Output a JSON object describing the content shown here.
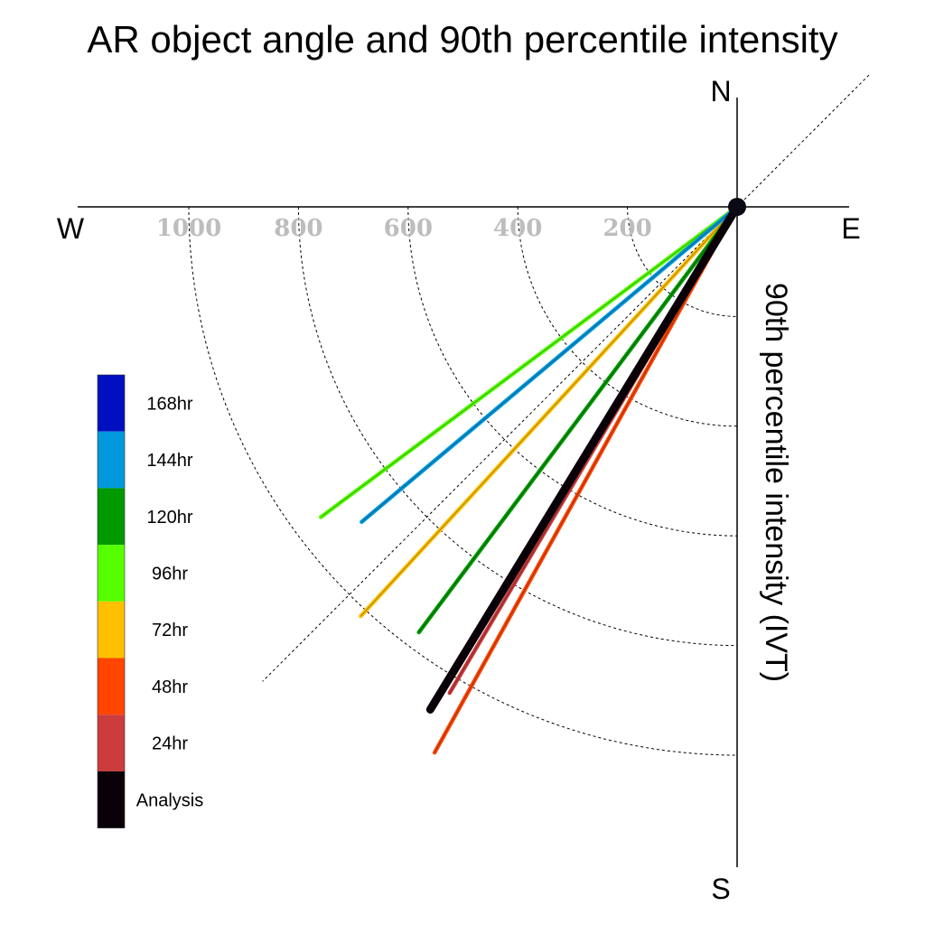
{
  "chart_data": {
    "type": "polar-vector",
    "title": "AR object angle and 90th percentile intensity",
    "radial_label": "90th percentile intensity (IVT)",
    "compass": {
      "north": "N",
      "south": "S",
      "east": "E",
      "west": "W"
    },
    "radial_ticks": [
      200,
      400,
      600,
      800,
      1000
    ],
    "radial_max": 1200,
    "reference_line_angle_deg": 45,
    "series": [
      {
        "name": "24hr",
        "color": "#cc3c3c",
        "angle_deg": 210.6,
        "value": 1030
      },
      {
        "name": "48hr",
        "color": "#ff4500",
        "angle_deg": 209.0,
        "value": 1138
      },
      {
        "name": "72hr",
        "color": "#ffc000",
        "angle_deg": 222.6,
        "value": 1014
      },
      {
        "name": "96hr",
        "color": "#55ff00",
        "angle_deg": 233.3,
        "value": 947
      },
      {
        "name": "120hr",
        "color": "#009900",
        "angle_deg": 216.8,
        "value": 969
      },
      {
        "name": "144hr",
        "color": "#0099dd",
        "angle_deg": 230.0,
        "value": 894
      },
      {
        "name": "Analysis",
        "color": "#0a0008",
        "angle_deg": 211.4,
        "value": 1074
      }
    ],
    "legend": [
      {
        "label": "168hr",
        "color": "#0010c0"
      },
      {
        "label": "144hr",
        "color": "#0099dd"
      },
      {
        "label": "120hr",
        "color": "#009900"
      },
      {
        "label": "96hr",
        "color": "#55ff00"
      },
      {
        "label": "72hr",
        "color": "#ffc000"
      },
      {
        "label": "48hr",
        "color": "#ff4500"
      },
      {
        "label": "24hr",
        "color": "#cc3c3c"
      },
      {
        "label": "Analysis",
        "color": "#0a0008"
      }
    ]
  }
}
